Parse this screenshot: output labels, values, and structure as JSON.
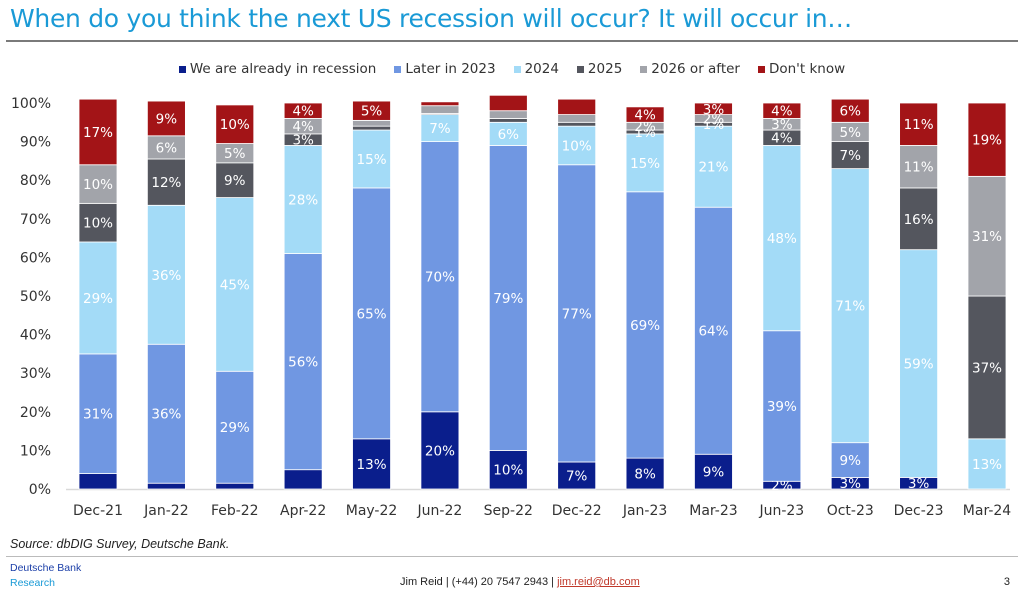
{
  "header": {
    "title": "When do you think the next US recession will occur? It will occur in…"
  },
  "chart_data": {
    "type": "bar",
    "stacked": true,
    "title": "When do you think the next US recession will occur? It will occur in…",
    "xlabel": "",
    "ylabel": "",
    "ylim": [
      0,
      100
    ],
    "yticks": [
      "0%",
      "10%",
      "20%",
      "30%",
      "40%",
      "50%",
      "60%",
      "70%",
      "80%",
      "90%",
      "100%"
    ],
    "grid": false,
    "legend_position": "top",
    "categories": [
      "Dec-21",
      "Jan-22",
      "Feb-22",
      "Apr-22",
      "May-22",
      "Jun-22",
      "Sep-22",
      "Dec-22",
      "Jan-23",
      "Mar-23",
      "Jun-23",
      "Oct-23",
      "Dec-23",
      "Mar-24"
    ],
    "series": [
      {
        "name": "We are already in recession",
        "color": "#0a1e8c",
        "values": [
          4,
          1.5,
          1.5,
          5,
          13,
          20,
          10,
          7,
          8,
          9,
          2,
          3,
          3,
          0
        ],
        "labels": [
          "",
          "",
          "",
          "",
          "13%",
          "20%",
          "10%",
          "7%",
          "8%",
          "9%",
          "2%",
          "3%",
          "3%",
          ""
        ]
      },
      {
        "name": "Later in 2023",
        "color": "#7097e2",
        "values": [
          31,
          36,
          29,
          56,
          65,
          70,
          79,
          77,
          69,
          64,
          39,
          9,
          0,
          0
        ],
        "labels": [
          "31%",
          "36%",
          "29%",
          "56%",
          "65%",
          "70%",
          "79%",
          "77%",
          "69%",
          "64%",
          "39%",
          "9%",
          "",
          ""
        ]
      },
      {
        "name": "2024",
        "color": "#a3dbf7",
        "values": [
          29,
          36,
          45,
          28,
          15,
          7,
          6,
          10,
          15,
          21,
          48,
          71,
          59,
          13
        ],
        "labels": [
          "29%",
          "36%",
          "45%",
          "28%",
          "15%",
          "7%",
          "6%",
          "10%",
          "15%",
          "21%",
          "48%",
          "71%",
          "59%",
          "13%"
        ]
      },
      {
        "name": "2025",
        "color": "#54565e",
        "values": [
          10,
          12,
          9,
          3,
          1,
          0.3,
          1,
          1,
          1,
          1,
          4,
          7,
          16,
          37
        ],
        "labels": [
          "10%",
          "12%",
          "9%",
          "3%",
          "",
          "",
          "",
          "",
          "1%",
          "1%",
          "4%",
          "7%",
          "16%",
          "37%"
        ]
      },
      {
        "name": "2026 or after",
        "color": "#a2a4aa",
        "values": [
          10,
          6,
          5,
          4,
          1.5,
          2,
          2,
          2,
          2,
          2,
          3,
          5,
          11,
          31
        ],
        "labels": [
          "10%",
          "6%",
          "5%",
          "4%",
          "",
          "",
          "",
          "",
          "2%",
          "2%",
          "3%",
          "5%",
          "11%",
          "31%"
        ]
      },
      {
        "name": "Don't know",
        "color": "#a31417",
        "values": [
          17,
          9,
          10,
          4,
          5,
          1,
          4,
          4,
          4,
          3,
          4,
          6,
          11,
          19
        ],
        "labels": [
          "17%",
          "9%",
          "10%",
          "4%",
          "5%",
          "",
          "",
          "",
          "4%",
          "3%",
          "4%",
          "6%",
          "11%",
          "19%"
        ]
      }
    ]
  },
  "footer": {
    "source": "Source: dbDIG Survey, Deutsche Bank.",
    "brand_line1": "Deutsche Bank",
    "brand_line2": "Research",
    "contact_text": "Jim Reid | (+44) 20 7547 2943 | ",
    "contact_email": "jim.reid@db.com",
    "page_number": "3"
  }
}
